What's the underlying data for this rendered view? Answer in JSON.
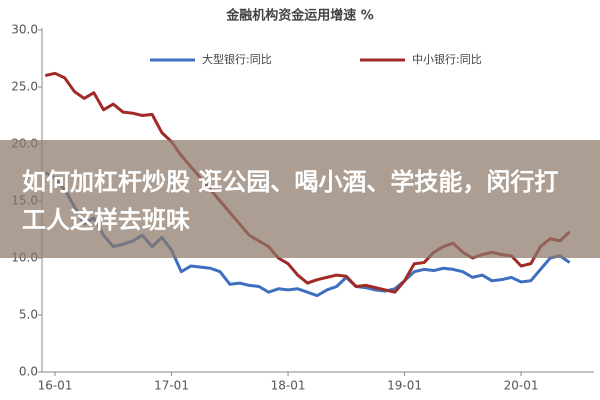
{
  "chart_data": {
    "type": "line",
    "title": "金融机构资金运用增速 %",
    "categories": [
      null,
      "16-01",
      null,
      null,
      null,
      null,
      null,
      null,
      null,
      null,
      null,
      null,
      null,
      "17-01",
      null,
      null,
      null,
      null,
      null,
      null,
      null,
      null,
      null,
      null,
      null,
      "18-01",
      null,
      null,
      null,
      null,
      null,
      null,
      null,
      null,
      null,
      null,
      null,
      "19-01",
      null,
      null,
      null,
      null,
      null,
      null,
      null,
      null,
      null,
      null,
      null,
      "20-01",
      null,
      null,
      null,
      null,
      null
    ],
    "series": [
      {
        "name": "大型银行:同比",
        "color": "#3f6fc0",
        "values": [
          17.5,
          17.0,
          16.0,
          14.5,
          13.0,
          13.5,
          12.0,
          11.0,
          11.2,
          11.5,
          12.0,
          11.0,
          11.8,
          10.7,
          8.8,
          9.3,
          9.2,
          9.1,
          8.8,
          7.7,
          7.8,
          7.6,
          7.5,
          7.0,
          7.3,
          7.2,
          7.3,
          7.0,
          6.7,
          7.2,
          7.5,
          8.3,
          7.5,
          7.4,
          7.2,
          7.1,
          7.3,
          8.0,
          8.8,
          9.0,
          8.9,
          9.1,
          9.0,
          8.8,
          8.3,
          8.5,
          8.0,
          8.1,
          8.3,
          7.9,
          8.0,
          9.0,
          10.0,
          10.2,
          9.6
        ]
      },
      {
        "name": "中小银行:同比",
        "color": "#a02a25",
        "values": [
          26.0,
          26.2,
          25.8,
          24.6,
          24.0,
          24.5,
          23.0,
          23.5,
          22.8,
          22.7,
          22.5,
          22.6,
          21.0,
          20.2,
          19.0,
          18.0,
          17.0,
          16.0,
          15.0,
          14.0,
          13.0,
          12.0,
          11.5,
          11.0,
          10.0,
          9.5,
          8.5,
          7.8,
          8.1,
          8.3,
          8.5,
          8.4,
          7.5,
          7.6,
          7.4,
          7.2,
          7.0,
          8.0,
          9.5,
          9.6,
          10.5,
          11.0,
          11.3,
          10.5,
          10.0,
          10.3,
          10.5,
          10.3,
          10.2,
          9.3,
          9.5,
          11.0,
          11.7,
          11.5,
          12.3
        ]
      }
    ],
    "ylim": [
      0,
      30
    ],
    "yticks": [
      {
        "value": 0,
        "label": "0.0"
      },
      {
        "value": 5,
        "label": "5.0"
      },
      {
        "value": 10,
        "label": "10.0"
      },
      {
        "value": 15,
        "label": "15.0"
      },
      {
        "value": 20,
        "label": "20.0"
      },
      {
        "value": 25,
        "label": "25.0"
      },
      {
        "value": 30,
        "label": "30.0"
      }
    ]
  },
  "banner": {
    "text": "如何加杠杆炒股 逛公园、喝小酒、学技能，闵行打工人这样去班味"
  }
}
